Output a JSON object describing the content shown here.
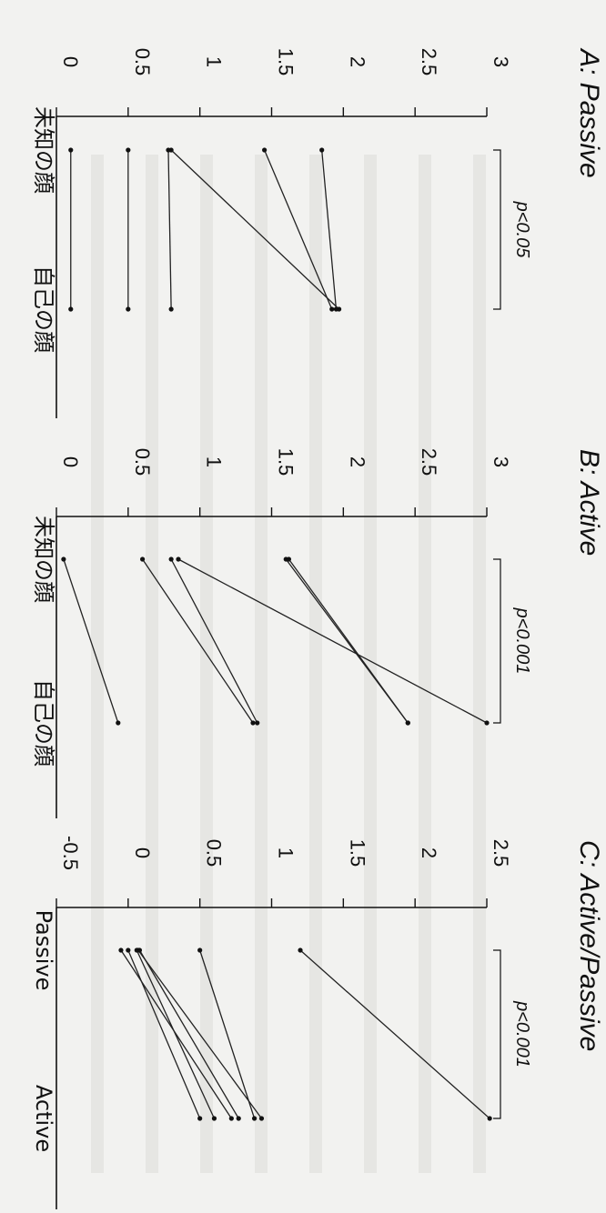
{
  "chart_data": [
    {
      "type": "line",
      "title": "A: Passive",
      "categories": [
        "未知の顔",
        "自己の顔"
      ],
      "ylim": [
        0,
        3
      ],
      "yticks": [
        "0",
        "0.5",
        "1",
        "1.5",
        "2",
        "2.5",
        "3"
      ],
      "significance": "p<0.05",
      "series": [
        {
          "values": [
            1.85,
            1.95
          ]
        },
        {
          "values": [
            1.45,
            1.92
          ]
        },
        {
          "values": [
            0.8,
            1.97
          ]
        },
        {
          "values": [
            0.78,
            0.8
          ]
        },
        {
          "values": [
            0.5,
            0.5
          ]
        },
        {
          "values": [
            0.1,
            0.1
          ]
        }
      ]
    },
    {
      "type": "line",
      "title": "B: Active",
      "categories": [
        "未知の顔",
        "自己の顔"
      ],
      "ylim": [
        0,
        3
      ],
      "yticks": [
        "0",
        "0.5",
        "1",
        "1.5",
        "2",
        "2.5",
        "3"
      ],
      "significance": "p<0.001",
      "series": [
        {
          "values": [
            0.85,
            3.0
          ]
        },
        {
          "values": [
            1.6,
            2.45
          ]
        },
        {
          "values": [
            1.62,
            2.45
          ]
        },
        {
          "values": [
            0.8,
            1.4
          ]
        },
        {
          "values": [
            0.6,
            1.37
          ]
        },
        {
          "values": [
            0.05,
            0.43
          ]
        }
      ]
    },
    {
      "type": "line",
      "title": "C: Active/Passive",
      "categories": [
        "Passive",
        "Active"
      ],
      "ylim": [
        -0.5,
        2.5
      ],
      "yticks": [
        "-0.5",
        "0",
        "0.5",
        "1",
        "1.5",
        "2",
        "2.5"
      ],
      "significance": "p<0.001",
      "series": [
        {
          "values": [
            1.2,
            2.52
          ]
        },
        {
          "values": [
            0.5,
            0.88
          ]
        },
        {
          "values": [
            0.07,
            0.93
          ]
        },
        {
          "values": [
            0.08,
            0.77
          ]
        },
        {
          "values": [
            0.06,
            0.6
          ]
        },
        {
          "values": [
            0.0,
            0.5
          ]
        },
        {
          "values": [
            -0.05,
            0.72
          ]
        }
      ]
    }
  ]
}
